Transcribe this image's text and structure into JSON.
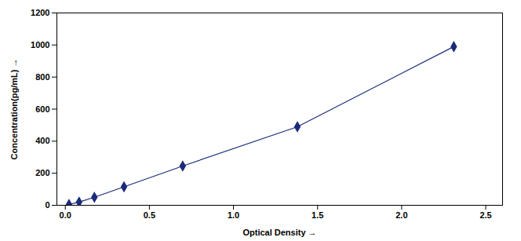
{
  "chart_data": {
    "type": "line",
    "xlabel": "Optical Density",
    "ylabel": "Concentration(pg/mL)",
    "x": [
      0.022,
      0.082,
      0.173,
      0.349,
      0.698,
      1.38,
      2.31
    ],
    "values": [
      5,
      20,
      50,
      115,
      245,
      490,
      990
    ],
    "color": "#1a2b7a",
    "marker": "diamond",
    "line_style": "solid",
    "xlim": [
      -0.05,
      2.6
    ],
    "ylim": [
      0,
      1200
    ],
    "xticks": [
      {
        "value": 0,
        "label": "0.0"
      },
      0.5,
      {
        "value": 1,
        "label": "1.0"
      },
      1.5,
      {
        "value": 2,
        "label": "2.0"
      },
      2.5
    ],
    "yticks": [
      0,
      200,
      400,
      600,
      800,
      1000,
      1200
    ],
    "grid": false
  }
}
